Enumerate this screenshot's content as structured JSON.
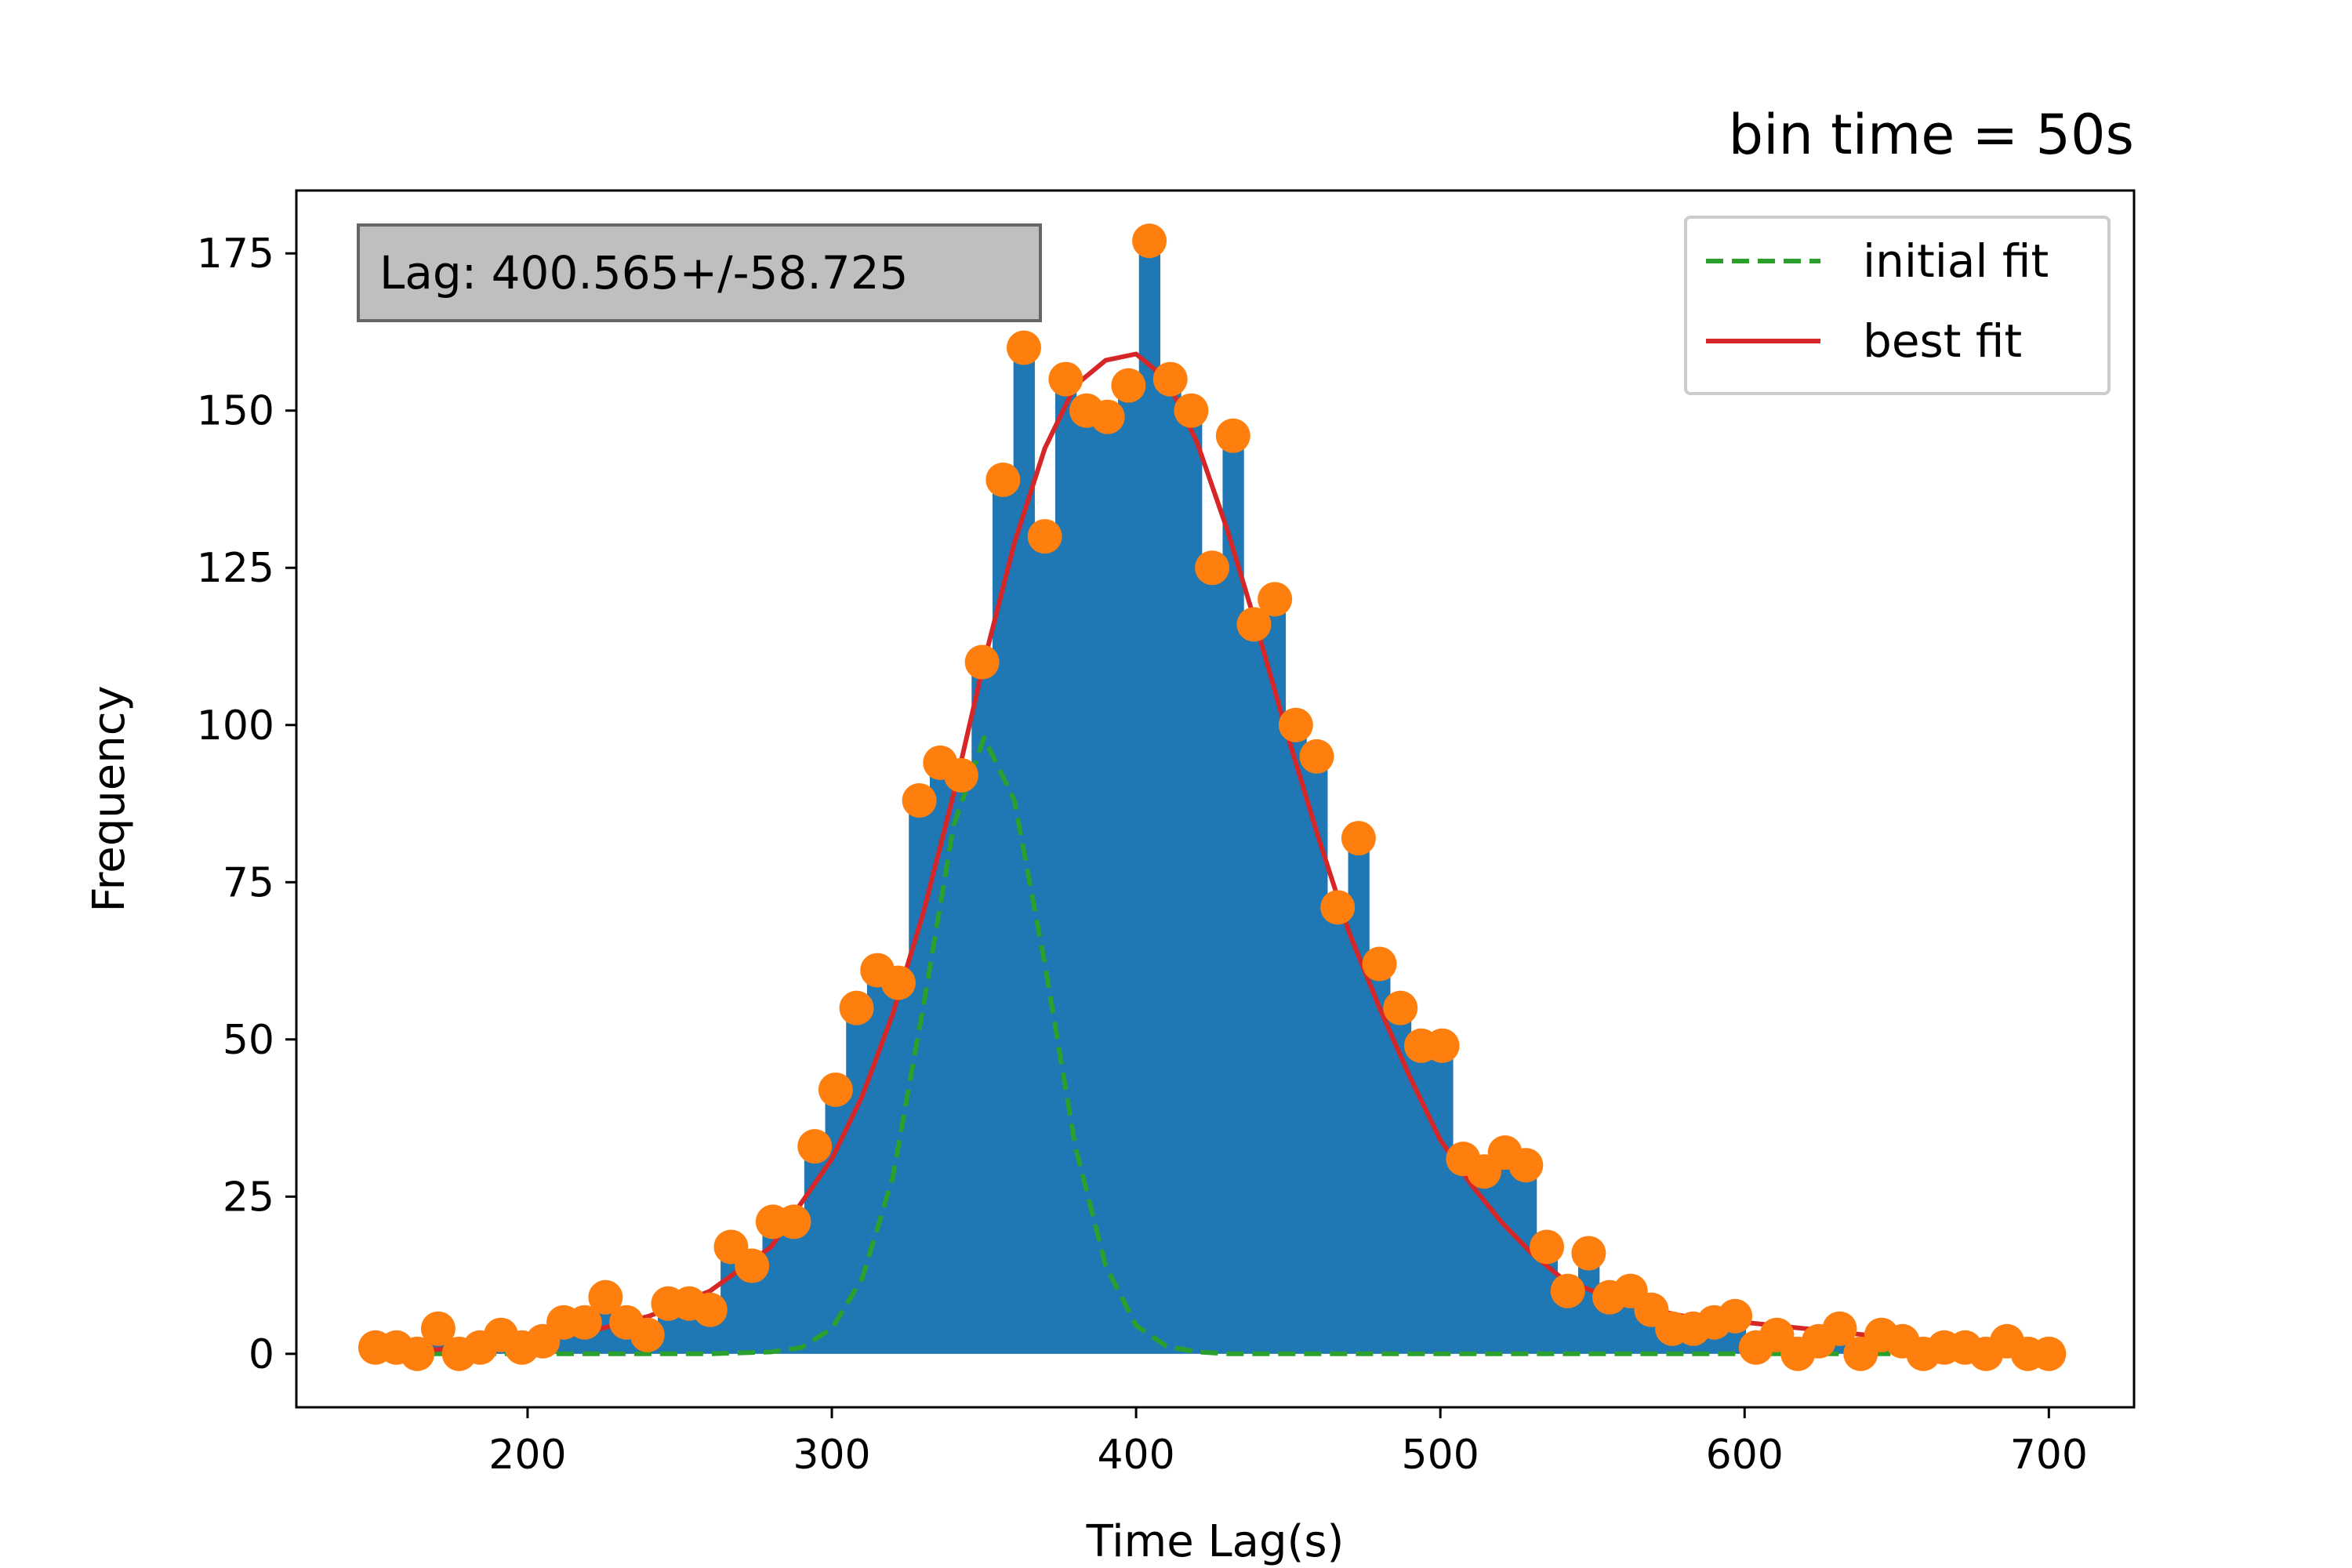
{
  "chart_data": {
    "type": "bar",
    "title": "bin time = 50s",
    "xlabel": "Time Lag(s)",
    "ylabel": "Frequency",
    "xlim": [
      124,
      728
    ],
    "ylim": [
      -8.5,
      185
    ],
    "x_ticks": [
      200,
      300,
      400,
      500,
      600,
      700
    ],
    "y_ticks": [
      0,
      25,
      50,
      75,
      100,
      125,
      150,
      175
    ],
    "grid": false,
    "legend_position": "top-right",
    "annotation": "Lag: 400.565+/-58.725",
    "colors": {
      "bars": "#1f77b4",
      "points": "#ff7f0e",
      "initial_fit": "#2ca02c",
      "best_fit": "#d62728",
      "annotation_bg": "#bfbfbf"
    },
    "bar_width": 6.875,
    "points": {
      "x": [
        150,
        156.875,
        163.75,
        170.625,
        177.5,
        184.375,
        191.25,
        198.125,
        205,
        211.875,
        218.75,
        225.625,
        232.5,
        239.375,
        246.25,
        253.125,
        260,
        266.875,
        273.75,
        280.625,
        287.5,
        294.375,
        301.25,
        308.125,
        315,
        321.875,
        328.75,
        335.625,
        342.5,
        349.375,
        356.25,
        363.125,
        370,
        376.875,
        383.75,
        390.625,
        397.5,
        404.375,
        411.25,
        418.125,
        425,
        431.875,
        438.75,
        445.625,
        452.5,
        459.375,
        466.25,
        473.125,
        480,
        486.875,
        493.75,
        500.625,
        507.5,
        514.375,
        521.25,
        528.125,
        535,
        541.875,
        548.75,
        555.625,
        562.5,
        569.375,
        576.25,
        583.125,
        590,
        596.875,
        603.75,
        610.625,
        617.5,
        624.375,
        631.25,
        638.125,
        645,
        651.875,
        658.75,
        665.625,
        672.5,
        679.375,
        686.25,
        693.125,
        700
      ],
      "y": [
        1,
        1,
        0,
        4,
        0,
        1,
        3,
        1,
        2,
        5,
        5,
        9,
        5,
        3,
        8,
        8,
        7,
        17,
        14,
        21,
        21,
        33,
        42,
        55,
        61,
        59,
        88,
        94,
        92,
        110,
        139,
        160,
        130,
        155,
        150,
        149,
        154,
        177,
        155,
        150,
        125,
        146,
        116,
        120,
        100,
        95,
        71,
        82,
        62,
        55,
        49,
        49,
        31,
        29,
        32,
        30,
        17,
        10,
        16,
        9,
        10,
        7,
        4,
        4,
        5,
        6,
        1,
        3,
        0,
        2,
        4,
        0,
        3,
        2,
        0,
        1,
        1,
        0,
        2,
        0,
        0
      ]
    },
    "series": [
      {
        "name": "initial fit",
        "style": "dashed",
        "x": [
          150,
          180,
          200,
          220,
          240,
          260,
          280,
          290,
          300,
          310,
          320,
          330,
          340,
          350,
          360,
          370,
          380,
          390,
          400,
          410,
          420,
          430,
          450,
          500,
          600,
          700
        ],
        "y": [
          0,
          0,
          0,
          0,
          0,
          0,
          0.3,
          1,
          4,
          12,
          28,
          55,
          84,
          98,
          88,
          62,
          33,
          14,
          4.5,
          1.2,
          0.3,
          0,
          0,
          0,
          0,
          0
        ]
      },
      {
        "name": "best fit",
        "style": "solid",
        "x": [
          150,
          180,
          200,
          220,
          240,
          260,
          280,
          300,
          310,
          320,
          330,
          340,
          350,
          360,
          370,
          380,
          390,
          400,
          410,
          420,
          430,
          440,
          450,
          460,
          470,
          480,
          490,
          500,
          510,
          520,
          530,
          540,
          550,
          560,
          570,
          580,
          600,
          620,
          640,
          660,
          680,
          700
        ],
        "y": [
          0,
          1,
          2,
          3.5,
          6,
          10,
          17,
          31,
          41,
          54,
          70,
          89,
          110,
          129,
          144,
          154,
          158,
          159,
          155,
          145,
          131,
          115,
          98,
          82,
          67,
          55,
          44,
          34,
          27,
          21,
          16,
          12,
          10,
          8,
          7,
          6,
          5,
          4,
          3,
          2,
          1,
          -1
        ]
      }
    ]
  }
}
